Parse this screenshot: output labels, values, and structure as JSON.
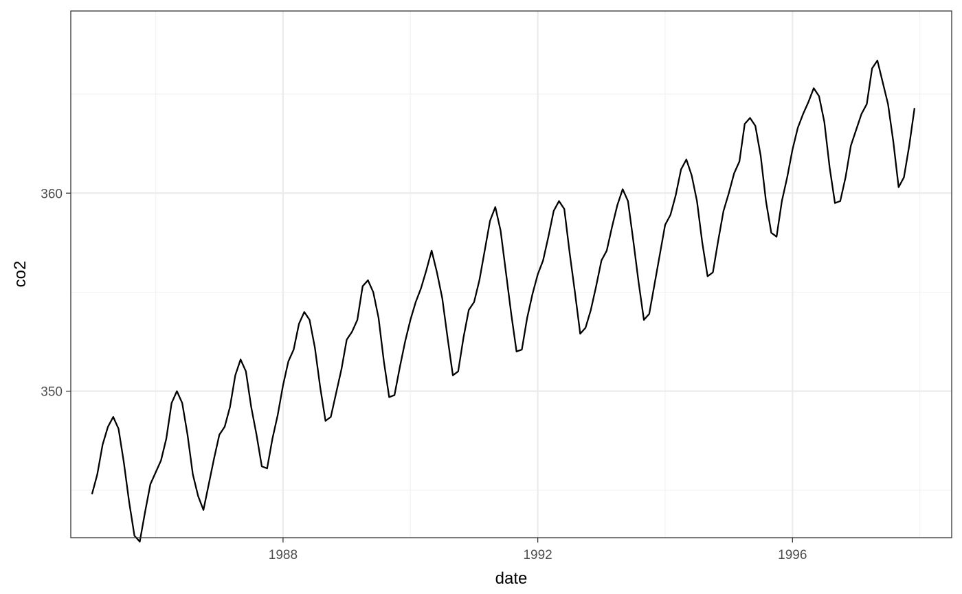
{
  "chart_data": {
    "type": "line",
    "title": "",
    "xlabel": "date",
    "ylabel": "co2",
    "x_is_date": true,
    "xlim": [
      "1984-09-01",
      "1998-07-01"
    ],
    "ylim": [
      342.6,
      369.2
    ],
    "x_ticks": [
      "1988",
      "1992",
      "1996"
    ],
    "y_ticks": [
      350,
      360
    ],
    "grid": true,
    "legend": "none",
    "colors": {
      "line": "#000000",
      "panel_border": "#333333",
      "grid_major": "#ebebeb",
      "grid_minor": "#f2f2f2",
      "background": "#ffffff"
    },
    "series": [
      {
        "x": [
          "1985-01",
          "1985-02",
          "1985-03",
          "1985-04",
          "1985-05",
          "1985-06",
          "1985-07",
          "1985-08",
          "1985-09",
          "1985-10",
          "1985-11",
          "1985-12",
          "1986-01",
          "1986-02",
          "1986-03",
          "1986-04",
          "1986-05",
          "1986-06",
          "1986-07",
          "1986-08",
          "1986-09",
          "1986-10",
          "1986-11",
          "1986-12",
          "1987-01",
          "1987-02",
          "1987-03",
          "1987-04",
          "1987-05",
          "1987-06",
          "1987-07",
          "1987-08",
          "1987-09",
          "1987-10",
          "1987-11",
          "1987-12",
          "1988-01",
          "1988-02",
          "1988-03",
          "1988-04",
          "1988-05",
          "1988-06",
          "1988-07",
          "1988-08",
          "1988-09",
          "1988-10",
          "1988-11",
          "1988-12",
          "1989-01",
          "1989-02",
          "1989-03",
          "1989-04",
          "1989-05",
          "1989-06",
          "1989-07",
          "1989-08",
          "1989-09",
          "1989-10",
          "1989-11",
          "1989-12",
          "1990-01",
          "1990-02",
          "1990-03",
          "1990-04",
          "1990-05",
          "1990-06",
          "1990-07",
          "1990-08",
          "1990-09",
          "1990-10",
          "1990-11",
          "1990-12",
          "1991-01",
          "1991-02",
          "1991-03",
          "1991-04",
          "1991-05",
          "1991-06",
          "1991-07",
          "1991-08",
          "1991-09",
          "1991-10",
          "1991-11",
          "1991-12",
          "1992-01",
          "1992-02",
          "1992-03",
          "1992-04",
          "1992-05",
          "1992-06",
          "1992-07",
          "1992-08",
          "1992-09",
          "1992-10",
          "1992-11",
          "1992-12",
          "1993-01",
          "1993-02",
          "1993-03",
          "1993-04",
          "1993-05",
          "1993-06",
          "1993-07",
          "1993-08",
          "1993-09",
          "1993-10",
          "1993-11",
          "1993-12",
          "1994-01",
          "1994-02",
          "1994-03",
          "1994-04",
          "1994-05",
          "1994-06",
          "1994-07",
          "1994-08",
          "1994-09",
          "1994-10",
          "1994-11",
          "1994-12",
          "1995-01",
          "1995-02",
          "1995-03",
          "1995-04",
          "1995-05",
          "1995-06",
          "1995-07",
          "1995-08",
          "1995-09",
          "1995-10",
          "1995-11",
          "1995-12",
          "1996-01",
          "1996-02",
          "1996-03",
          "1996-04",
          "1996-05",
          "1996-06",
          "1996-07",
          "1996-08",
          "1996-09",
          "1996-10",
          "1996-11",
          "1996-12",
          "1997-01",
          "1997-02",
          "1997-03",
          "1997-04",
          "1997-05",
          "1997-06",
          "1997-07",
          "1997-08",
          "1997-09",
          "1997-10",
          "1997-11",
          "1997-12"
        ],
        "y": [
          344.8,
          345.8,
          347.3,
          348.2,
          348.7,
          348.1,
          346.4,
          344.4,
          342.7,
          342.4,
          343.9,
          345.3,
          345.9,
          346.5,
          347.6,
          349.4,
          350.0,
          349.4,
          347.8,
          345.8,
          344.7,
          344.0,
          345.3,
          346.6,
          347.8,
          348.2,
          349.2,
          350.8,
          351.6,
          351.0,
          349.2,
          347.8,
          346.2,
          346.1,
          347.6,
          348.8,
          350.3,
          351.5,
          352.1,
          353.4,
          354.0,
          353.6,
          352.2,
          350.2,
          348.5,
          348.7,
          349.9,
          351.1,
          352.6,
          353.0,
          353.6,
          355.3,
          355.6,
          355.0,
          353.7,
          351.5,
          349.7,
          349.8,
          351.2,
          352.5,
          353.6,
          354.5,
          355.2,
          356.1,
          357.1,
          356.0,
          354.7,
          352.7,
          350.8,
          351.0,
          352.7,
          354.1,
          354.5,
          355.6,
          357.1,
          358.6,
          359.3,
          358.1,
          356.0,
          353.9,
          352.0,
          352.1,
          353.7,
          354.9,
          355.9,
          356.6,
          357.8,
          359.1,
          359.6,
          359.2,
          357.0,
          355.0,
          352.9,
          353.2,
          354.1,
          355.3,
          356.6,
          357.1,
          358.3,
          359.4,
          360.2,
          359.6,
          357.6,
          355.5,
          353.6,
          353.9,
          355.4,
          356.9,
          358.4,
          358.9,
          359.9,
          361.2,
          361.7,
          360.9,
          359.6,
          357.5,
          355.8,
          356.0,
          357.6,
          359.1,
          360.0,
          361.0,
          361.6,
          363.5,
          363.8,
          363.4,
          361.9,
          359.6,
          358.0,
          357.8,
          359.6,
          360.8,
          362.2,
          363.3,
          364.0,
          364.6,
          365.3,
          364.9,
          363.6,
          361.3,
          359.5,
          359.6,
          360.8,
          362.4,
          363.2,
          364.0,
          364.5,
          366.3,
          366.7,
          365.6,
          364.5,
          362.6,
          360.3,
          360.8,
          362.4,
          364.3
        ]
      }
    ]
  }
}
